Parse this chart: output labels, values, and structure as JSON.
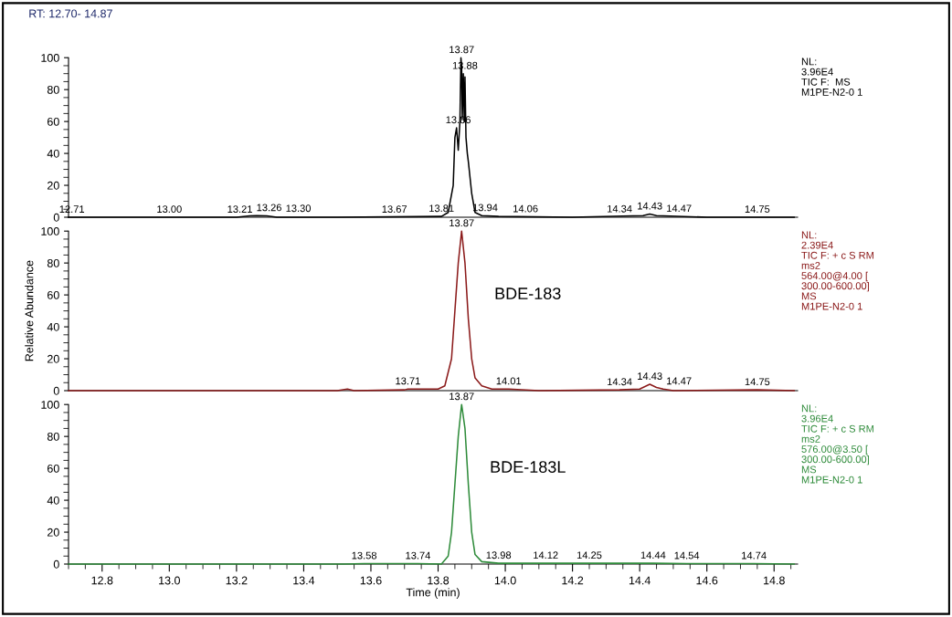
{
  "chart_data": [
    {
      "type": "line",
      "title": "RT: 12.70- 14.87",
      "xlim": [
        12.7,
        14.87
      ],
      "ylim": [
        0,
        100
      ],
      "yticks": [
        0,
        20,
        40,
        60,
        80,
        100
      ],
      "tick_labels": "y",
      "grid": false,
      "series": [
        {
          "color": "#000000",
          "x": [
            12.7,
            12.9,
            13.2,
            13.24,
            13.26,
            13.29,
            13.32,
            13.5,
            13.81,
            13.83,
            13.845,
            13.85,
            13.855,
            13.86,
            13.865,
            13.868,
            13.87,
            13.872,
            13.875,
            13.878,
            13.88,
            13.883,
            13.887,
            13.89,
            13.9,
            13.91,
            13.93,
            13.98,
            14.2,
            14.41,
            14.43,
            14.45,
            14.6,
            14.86
          ],
          "values": [
            0,
            0,
            0,
            0.8,
            1,
            0.8,
            0,
            0,
            0.5,
            3,
            20,
            50,
            56,
            42,
            60,
            100,
            95,
            62,
            90,
            60,
            88,
            50,
            40,
            35,
            15,
            3,
            1,
            0.5,
            0,
            1,
            2,
            1,
            0,
            0
          ]
        }
      ],
      "annotations": [
        {
          "text": "12.71",
          "x": 12.71,
          "y": 0
        },
        {
          "text": "13.00",
          "x": 13.0,
          "y": 0
        },
        {
          "text": "13.21",
          "x": 13.21,
          "y": 0
        },
        {
          "text": "13.26",
          "x": 13.26,
          "y": 1
        },
        {
          "text": "13.30",
          "x": 13.3,
          "y": 0.5
        },
        {
          "text": "13.67",
          "x": 13.67,
          "y": 0
        },
        {
          "text": "13.81",
          "x": 13.81,
          "y": 0.5
        },
        {
          "text": "13.86",
          "x": 13.86,
          "y": 56
        },
        {
          "text": "13.87",
          "x": 13.87,
          "y": 100
        },
        {
          "text": "13.88",
          "x": 13.88,
          "y": 90
        },
        {
          "text": "13.94",
          "x": 13.94,
          "y": 1
        },
        {
          "text": "14.06",
          "x": 14.06,
          "y": 0.3
        },
        {
          "text": "14.34",
          "x": 14.34,
          "y": 0.2
        },
        {
          "text": "14.43",
          "x": 14.43,
          "y": 2
        },
        {
          "text": "14.47",
          "x": 14.47,
          "y": 0.5
        },
        {
          "text": "14.75",
          "x": 14.75,
          "y": 0
        },
        "NL:\n3.96E4\nTIC F:  MS\nM1PE-N2-0 1"
      ]
    },
    {
      "type": "line",
      "ylabel": "Relative Abundance",
      "xlim": [
        12.7,
        14.87
      ],
      "ylim": [
        0,
        100
      ],
      "yticks": [
        0,
        20,
        40,
        60,
        80,
        100
      ],
      "tick_labels": "y",
      "grid": false,
      "series": [
        {
          "color": "#8b1a1a",
          "x": [
            12.7,
            13.5,
            13.53,
            13.55,
            13.7,
            13.71,
            13.8,
            13.82,
            13.84,
            13.85,
            13.86,
            13.87,
            13.88,
            13.89,
            13.9,
            13.91,
            13.93,
            13.96,
            14.01,
            14.1,
            14.34,
            14.4,
            14.42,
            14.43,
            14.45,
            14.47,
            14.5,
            14.75,
            14.86
          ],
          "values": [
            0,
            0,
            1,
            0,
            0.5,
            1,
            1,
            3,
            20,
            50,
            80,
            100,
            80,
            45,
            20,
            8,
            3,
            1,
            1,
            0,
            0.5,
            1,
            3,
            4,
            2,
            1,
            0,
            0.5,
            0
          ]
        }
      ],
      "annotations": [
        {
          "text": "13.71",
          "x": 13.71,
          "y": 1
        },
        {
          "text": "13.87",
          "x": 13.87,
          "y": 100
        },
        {
          "text": "14.01",
          "x": 14.01,
          "y": 1
        },
        {
          "text": "14.34",
          "x": 14.34,
          "y": 0.5
        },
        {
          "text": "14.43",
          "x": 14.43,
          "y": 4
        },
        {
          "text": "14.47",
          "x": 14.47,
          "y": 1
        },
        {
          "text": "14.75",
          "x": 14.75,
          "y": 0.5
        },
        "NL:\n2.39E4\nTIC F: + c S RM\nms2\n564.00@4.00 [\n300.00-600.00]\nMS\nM1PE-N2-0 1",
        "BDE-183"
      ]
    },
    {
      "type": "line",
      "xlabel": "Time (min)",
      "xlim": [
        12.7,
        14.87
      ],
      "xticks": [
        12.8,
        {
          "value": 13,
          "label": "13.0"
        },
        13.2,
        13.4,
        13.6,
        13.8,
        {
          "value": 14,
          "label": "14.0"
        },
        14.2,
        14.4,
        14.6,
        14.8
      ],
      "ylim": [
        0,
        100
      ],
      "yticks": [
        0,
        20,
        40,
        60,
        80,
        100
      ],
      "grid": false,
      "series": [
        {
          "color": "#2e8b3a",
          "x": [
            12.7,
            13.52,
            13.58,
            13.74,
            13.81,
            13.83,
            13.84,
            13.85,
            13.86,
            13.87,
            13.88,
            13.89,
            13.9,
            13.91,
            13.93,
            13.98,
            14.12,
            14.25,
            14.44,
            14.54,
            14.74,
            14.86
          ],
          "values": [
            0,
            0,
            0.3,
            0.3,
            0,
            5,
            20,
            50,
            80,
            100,
            85,
            50,
            20,
            6,
            1.5,
            0.5,
            0.5,
            0.5,
            0.5,
            0.3,
            0.3,
            0
          ]
        }
      ],
      "annotations": [
        {
          "text": "13.58",
          "x": 13.58,
          "y": 0.3
        },
        {
          "text": "13.74",
          "x": 13.74,
          "y": 0.3
        },
        {
          "text": "13.87",
          "x": 13.87,
          "y": 100
        },
        {
          "text": "13.98",
          "x": 13.98,
          "y": 0.5
        },
        {
          "text": "14.12",
          "x": 14.12,
          "y": 0.5
        },
        {
          "text": "14.25",
          "x": 14.25,
          "y": 0.5
        },
        {
          "text": "14.44",
          "x": 14.44,
          "y": 0.5
        },
        {
          "text": "14.54",
          "x": 14.54,
          "y": 0.3
        },
        {
          "text": "14.74",
          "x": 14.74,
          "y": 0.3
        },
        "NL:\n3.96E4\nTIC F: + c S RM\nms2\n576.00@3.50 [\n300.00-600.00]\nMS\nM1PE-N2-0 1",
        "BDE-183L"
      ]
    }
  ]
}
